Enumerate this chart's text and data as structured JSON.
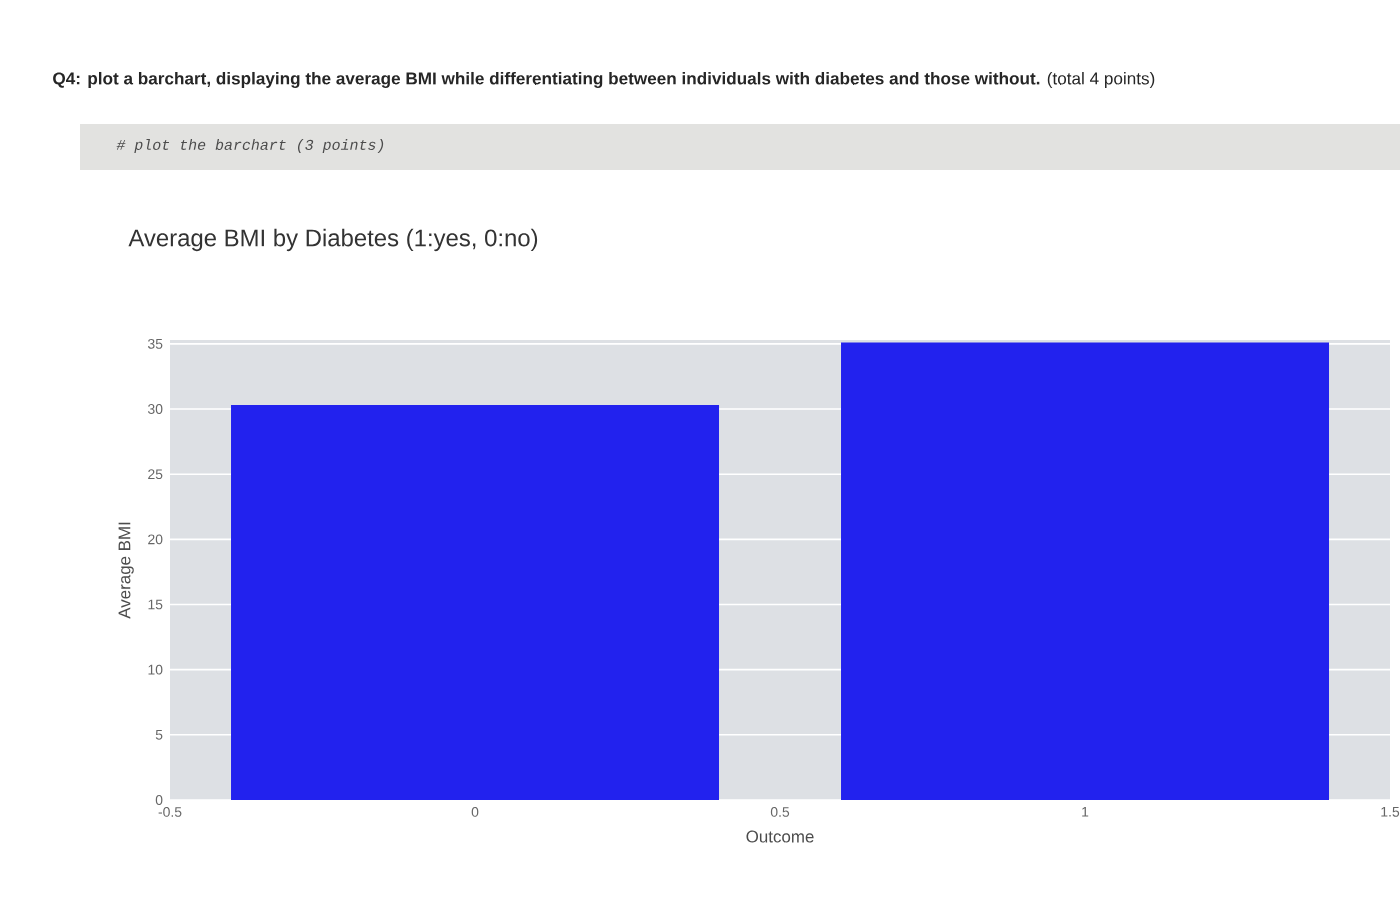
{
  "chart_data": {
    "type": "bar",
    "title": "Average BMI by Diabetes (1:yes, 0:no)",
    "xlabel": "Outcome",
    "ylabel": "Average BMI",
    "x": [
      0,
      1
    ],
    "values": [
      30.3,
      35.1
    ],
    "color": "#2222ee",
    "xlim": [
      -0.5,
      1.5
    ],
    "xticks": [
      -0.5,
      0,
      0.5,
      1,
      1.5
    ],
    "ylim": [
      0,
      35.3
    ],
    "yticks": [
      0,
      5,
      10,
      15,
      20,
      25,
      30,
      35
    ],
    "grid": "y",
    "annotations": [
      "**Q4: plot a barchart, displaying the average BMI while differentiating between individuals with diabetes and those without.** (total 4 points)",
      "# plot the barchart (3 points)"
    ]
  }
}
